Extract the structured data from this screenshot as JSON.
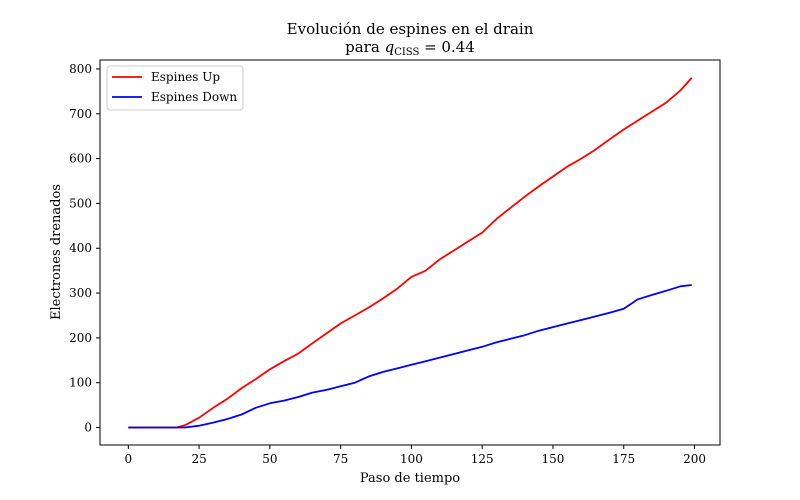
{
  "chart_data": {
    "type": "line",
    "title_line1": "Evolución de espines en el drain",
    "title_line2_prefix": "para ",
    "title_q": "q",
    "title_subscript": "CISS",
    "title_line2_suffix": " = 0.44",
    "xlabel": "Paso de tiempo",
    "ylabel": "Electrones drenados",
    "xlim": [
      -10,
      209
    ],
    "ylim": [
      -39,
      820
    ],
    "xticks": [
      0,
      25,
      50,
      75,
      100,
      125,
      150,
      175,
      200
    ],
    "yticks": [
      0,
      100,
      200,
      300,
      400,
      500,
      600,
      700,
      800
    ],
    "legend_position": "upper-left",
    "series": [
      {
        "name": "Espines Up",
        "color": "#ff0000",
        "points": [
          [
            0,
            0
          ],
          [
            17,
            0
          ],
          [
            20,
            5
          ],
          [
            25,
            22
          ],
          [
            30,
            44
          ],
          [
            35,
            64
          ],
          [
            40,
            88
          ],
          [
            45,
            108
          ],
          [
            50,
            130
          ],
          [
            55,
            148
          ],
          [
            60,
            165
          ],
          [
            65,
            188
          ],
          [
            70,
            210
          ],
          [
            75,
            232
          ],
          [
            80,
            250
          ],
          [
            85,
            268
          ],
          [
            90,
            288
          ],
          [
            95,
            310
          ],
          [
            100,
            336
          ],
          [
            105,
            350
          ],
          [
            110,
            375
          ],
          [
            115,
            395
          ],
          [
            120,
            415
          ],
          [
            125,
            435
          ],
          [
            130,
            465
          ],
          [
            135,
            490
          ],
          [
            140,
            515
          ],
          [
            145,
            538
          ],
          [
            150,
            560
          ],
          [
            155,
            582
          ],
          [
            160,
            600
          ],
          [
            165,
            620
          ],
          [
            170,
            643
          ],
          [
            175,
            665
          ],
          [
            180,
            685
          ],
          [
            185,
            705
          ],
          [
            190,
            725
          ],
          [
            195,
            752
          ],
          [
            199,
            780
          ]
        ]
      },
      {
        "name": "Espines Down",
        "color": "#0000ff",
        "points": [
          [
            0,
            0
          ],
          [
            20,
            0
          ],
          [
            25,
            4
          ],
          [
            30,
            11
          ],
          [
            35,
            19
          ],
          [
            40,
            29
          ],
          [
            45,
            44
          ],
          [
            50,
            54
          ],
          [
            55,
            60
          ],
          [
            60,
            68
          ],
          [
            65,
            78
          ],
          [
            70,
            84
          ],
          [
            75,
            92
          ],
          [
            80,
            100
          ],
          [
            85,
            114
          ],
          [
            90,
            124
          ],
          [
            95,
            132
          ],
          [
            100,
            140
          ],
          [
            105,
            148
          ],
          [
            110,
            156
          ],
          [
            115,
            164
          ],
          [
            120,
            172
          ],
          [
            125,
            180
          ],
          [
            130,
            190
          ],
          [
            135,
            198
          ],
          [
            140,
            206
          ],
          [
            145,
            216
          ],
          [
            150,
            224
          ],
          [
            155,
            232
          ],
          [
            160,
            240
          ],
          [
            165,
            248
          ],
          [
            170,
            256
          ],
          [
            175,
            265
          ],
          [
            180,
            286
          ],
          [
            185,
            296
          ],
          [
            190,
            305
          ],
          [
            195,
            315
          ],
          [
            199,
            318
          ]
        ]
      }
    ]
  }
}
